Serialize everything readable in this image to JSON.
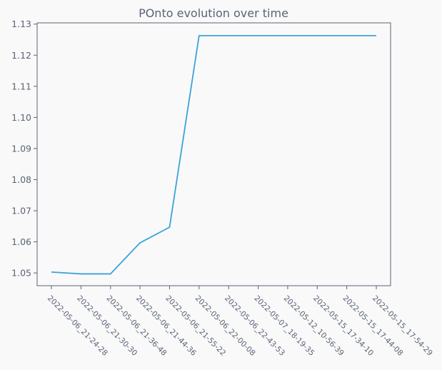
{
  "chart_data": {
    "type": "line",
    "title": "POnto evolution over time",
    "xlabel": "",
    "ylabel": "",
    "x": [
      "2022-05-06_21-24-28",
      "2022-05-06_21-30-30",
      "2022-05-06_21-36-48",
      "2022-05-06_21-44-36",
      "2022-05-06_21-55-22",
      "2022-05-06_22-00-08",
      "2022-05-06_22-43-53",
      "2022-05-07_18-19-35",
      "2022-05-12_10-56-39",
      "2022-05-15_17-34-10",
      "2022-05-15_17-44-08",
      "2022-05-15_17-54-29"
    ],
    "series": [
      {
        "values": [
          1.0503,
          1.0497,
          1.0497,
          1.0597,
          1.0647,
          1.1263,
          1.1263,
          1.1263,
          1.1263,
          1.1263,
          1.1263,
          1.1263
        ]
      }
    ],
    "ylim": [
      1.0459,
      1.1304
    ],
    "yticks": [
      1.05,
      1.06,
      1.07,
      1.08,
      1.09,
      1.1,
      1.11,
      1.12,
      1.13
    ],
    "ytick_labels": [
      "1.05",
      "1.06",
      "1.07",
      "1.08",
      "1.09",
      "1.10",
      "1.11",
      "1.12",
      "1.13"
    ],
    "grid": false,
    "colors": {
      "line": "#3ba3d8",
      "axes": "#5a6378",
      "text": "#5a6378",
      "background": "#f9f9f9"
    }
  }
}
